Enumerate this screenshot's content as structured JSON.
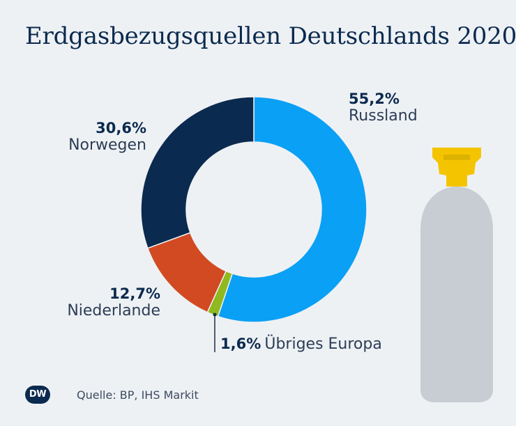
{
  "title": "Erdgasbezugsquellen Deutschlands 2020",
  "source": "Quelle: BP, IHS Markit",
  "logo_text": "DW",
  "colors": {
    "background": "#eef1f4",
    "russland": "#0aa0f5",
    "uebriges": "#8fb91e",
    "niederlande": "#d24a22",
    "norwegen": "#0b2a4f",
    "bottle_body": "#c8cdd3",
    "bottle_valve": "#f5c400"
  },
  "chart_data": {
    "type": "pie",
    "variant": "donut",
    "title": "Erdgasbezugsquellen Deutschlands 2020",
    "unit": "%",
    "slices": [
      {
        "name": "Russland",
        "value": 55.2,
        "label": "55,2%"
      },
      {
        "name": "Übriges Europa",
        "value": 1.6,
        "label": "1,6%"
      },
      {
        "name": "Niederlande",
        "value": 12.7,
        "label": "12,7%"
      },
      {
        "name": "Norwegen",
        "value": 30.6,
        "label": "30,6%"
      }
    ]
  }
}
